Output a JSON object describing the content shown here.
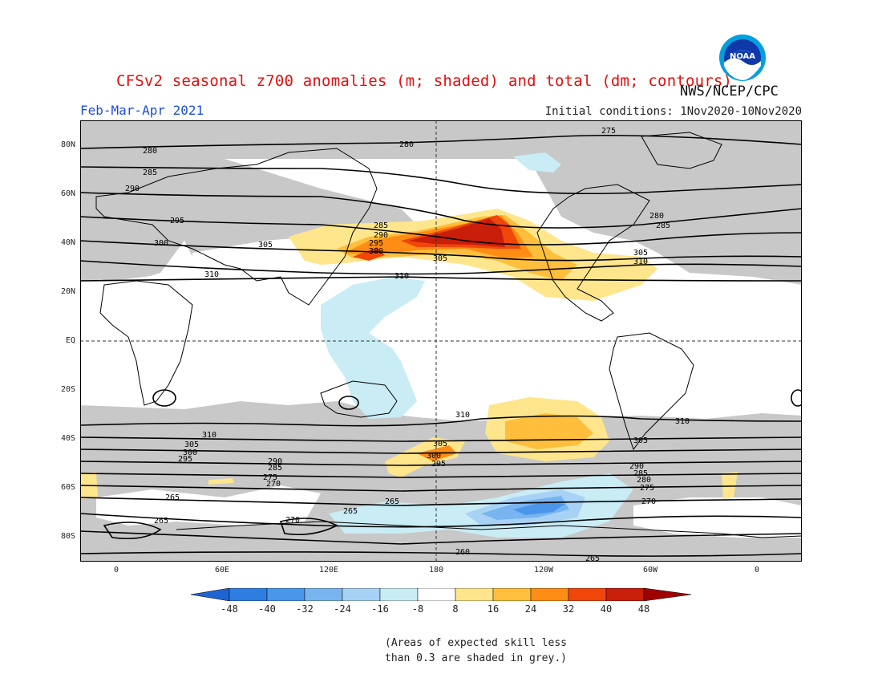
{
  "title": "CFSv2 seasonal z700 anomalies (m; shaded) and total (dm; contours)",
  "agency": "NWS/NCEP/CPC",
  "period": "Feb-Mar-Apr 2021",
  "initial_conditions": "Initial conditions: 1Nov2020-10Nov2020",
  "logo_text": "NOAA",
  "map": {
    "lat_labels": [
      "80N",
      "60N",
      "40N",
      "20N",
      "EQ",
      "20S",
      "40S",
      "60S",
      "80S"
    ],
    "lon_labels": [
      "0",
      "60E",
      "120E",
      "180",
      "120W",
      "60W",
      "0"
    ],
    "contour_labels": {
      "north": [
        "275",
        "280",
        "280",
        "280",
        "285",
        "285",
        "285",
        "290",
        "290",
        "295",
        "295",
        "300",
        "300",
        "305",
        "305",
        "305",
        "310",
        "310",
        "310"
      ],
      "south": [
        "310",
        "310",
        "310",
        "305",
        "305",
        "305",
        "300",
        "300",
        "295",
        "295",
        "290",
        "290",
        "285",
        "285",
        "280",
        "275",
        "275",
        "270",
        "270",
        "270",
        "265",
        "265",
        "265",
        "265",
        "260",
        "265"
      ]
    },
    "colors": {
      "land": "#000000",
      "grid": "#333333",
      "skill_mask": "#c8c8c8"
    }
  },
  "colorbar": {
    "labels": [
      "-48",
      "-40",
      "-32",
      "-24",
      "-16",
      "-8",
      "8",
      "16",
      "24",
      "32",
      "40",
      "48"
    ],
    "colors": [
      "#1e64d2",
      "#2e7de1",
      "#4a96eb",
      "#78b4f0",
      "#a8d2f5",
      "#c9ecf5",
      "#ffffff",
      "#ffe68c",
      "#ffbe3c",
      "#ff8c14",
      "#f0460a",
      "#c81e0a",
      "#a00000"
    ]
  },
  "note_line1": "(Areas of expected skill less",
  "note_line2": "than 0.3 are shaded in grey.)"
}
